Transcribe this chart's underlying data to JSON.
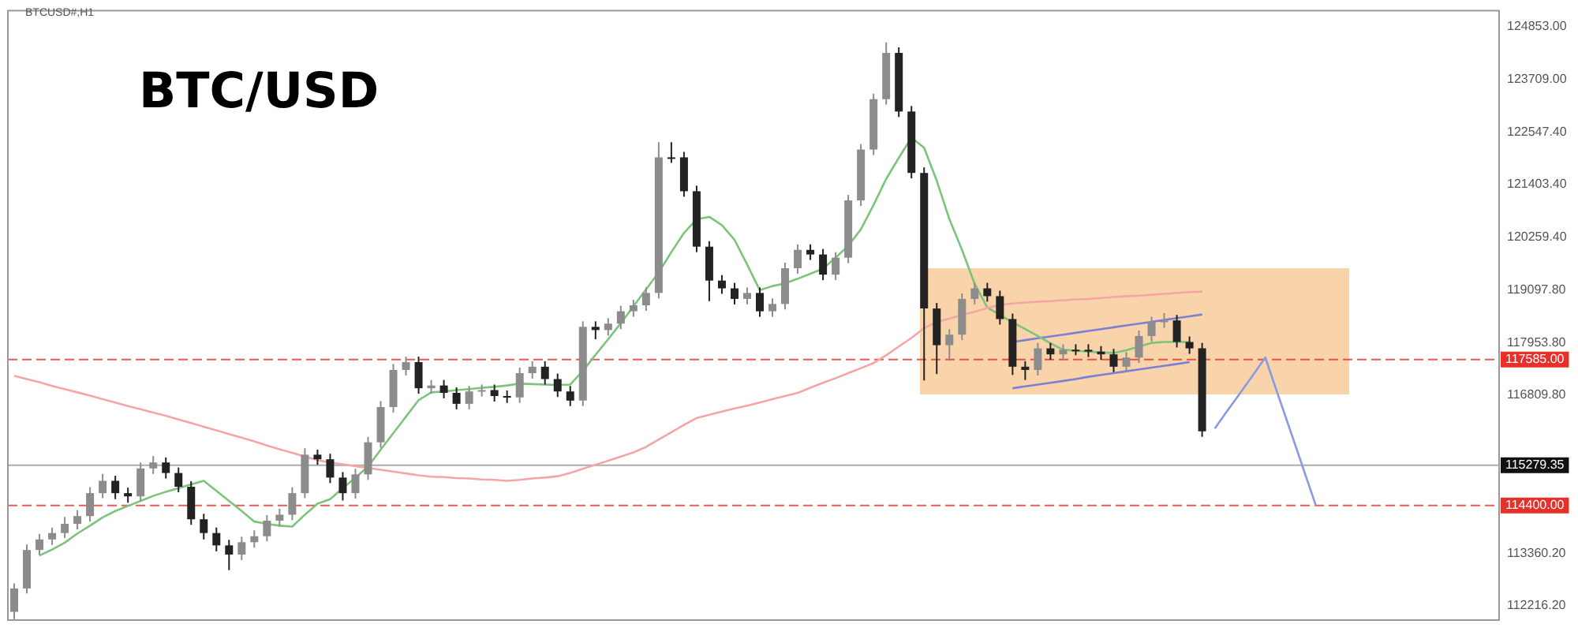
{
  "chart_data": {
    "type": "candlestick",
    "title": "BTC/USD",
    "subtitle": "BTCUSD#,H1",
    "colors": [
      "#8c8c8c",
      "#8c8c8c",
      "#8c8c8c",
      "#8c8c8c",
      "#8c8c8c",
      "#8c8c8c",
      "#8c8c8c",
      "#8c8c8c",
      "#222222",
      "#222222",
      "#8c8c8c",
      "#8c8c8c",
      "#222222",
      "#222222",
      "#222222",
      "#222222",
      "#222222",
      "#222222",
      "#8c8c8c",
      "#8c8c8c",
      "#8c8c8c",
      "#8c8c8c",
      "#8c8c8c",
      "#8c8c8c",
      "#222222",
      "#222222",
      "#222222",
      "#8c8c8c",
      "#8c8c8c",
      "#8c8c8c",
      "#8c8c8c",
      "#8c8c8c",
      "#222222",
      "#8c8c8c",
      "#222222",
      "#222222",
      "#8c8c8c",
      "#8c8c8c",
      "#222222",
      "#222222",
      "#8c8c8c",
      "#8c8c8c",
      "#222222",
      "#222222",
      "#222222",
      "#8c8c8c",
      "#222222",
      "#8c8c8c",
      "#8c8c8c",
      "#8c8c8c",
      "#8c8c8c",
      "#8c8c8c",
      "#222222",
      "#222222",
      "#222222",
      "#222222",
      "#222222",
      "#222222",
      "#8c8c8c",
      "#222222",
      "#8c8c8c",
      "#8c8c8c",
      "#8c8c8c",
      "#222222",
      "#222222",
      "#8c8c8c",
      "#8c8c8c",
      "#8c8c8c",
      "#8c8c8c",
      "#8c8c8c",
      "#222222",
      "#222222",
      "#222222",
      "#222222",
      "#8c8c8c",
      "#8c8c8c",
      "#8c8c8c",
      "#222222",
      "#222222",
      "#222222",
      "#222222",
      "#8c8c8c",
      "#222222",
      "#8c8c8c",
      "#222222",
      "#222222",
      "#222222",
      "#222222",
      "#8c8c8c",
      "#8c8c8c",
      "#8c8c8c",
      "#8c8c8c",
      "#222222",
      "#222222",
      "#222222",
      null,
      null,
      null,
      null,
      null,
      null,
      null,
      null,
      null,
      null,
      null,
      null,
      null,
      null,
      null,
      null,
      null,
      null,
      null,
      null,
      null,
      null,
      null
    ],
    "categories": [
      null,
      null,
      null,
      null,
      null,
      null,
      null,
      null,
      null,
      null,
      null,
      null,
      null,
      null,
      null,
      null,
      null,
      null,
      null,
      null,
      null,
      null,
      null,
      null,
      null,
      null,
      null,
      null,
      null,
      null,
      null,
      null,
      null,
      null,
      null,
      null,
      null,
      null,
      null,
      null,
      null,
      null,
      null,
      null,
      null,
      null,
      null,
      null,
      null,
      null,
      null,
      null,
      null,
      null,
      null,
      null,
      null,
      null,
      null,
      null,
      null,
      null,
      null,
      null,
      null,
      null,
      null,
      null,
      null,
      null,
      null,
      null,
      null,
      null,
      null,
      null,
      null,
      null,
      null,
      null,
      null,
      null,
      null,
      null,
      null,
      null,
      null,
      null,
      null,
      null,
      null,
      null,
      null,
      null,
      null,
      null,
      null,
      null,
      null,
      null,
      null,
      null,
      null,
      null,
      null,
      null,
      null,
      null,
      null,
      null,
      null,
      null,
      null,
      null,
      null,
      null,
      null,
      null
    ],
    "ohlc": [
      [
        112080,
        112700,
        111920,
        112590
      ],
      [
        112590,
        113550,
        112480,
        113430
      ],
      [
        113430,
        113780,
        113320,
        113660
      ],
      [
        113660,
        113920,
        113540,
        113800
      ],
      [
        113800,
        114150,
        113690,
        114000
      ],
      [
        114000,
        114300,
        113880,
        114170
      ],
      [
        114170,
        114800,
        114050,
        114670
      ],
      [
        114670,
        115090,
        114560,
        114940
      ],
      [
        114940,
        115050,
        114540,
        114670
      ],
      [
        114670,
        114790,
        114460,
        114600
      ],
      [
        114600,
        115340,
        114500,
        115210
      ],
      [
        115210,
        115480,
        115090,
        115340
      ],
      [
        115340,
        115450,
        114990,
        115110
      ],
      [
        115110,
        115230,
        114690,
        114810
      ],
      [
        114810,
        114930,
        113980,
        114100
      ],
      [
        114100,
        114220,
        113660,
        113800
      ],
      [
        113800,
        113920,
        113400,
        113530
      ],
      [
        113530,
        113650,
        112990,
        113330
      ],
      [
        113330,
        113720,
        113210,
        113600
      ],
      [
        113600,
        113860,
        113480,
        113730
      ],
      [
        113730,
        114190,
        113620,
        114070
      ],
      [
        114070,
        114330,
        113950,
        114200
      ],
      [
        114200,
        114800,
        114080,
        114670
      ],
      [
        114670,
        115650,
        114560,
        115510
      ],
      [
        115510,
        115620,
        115290,
        115410
      ],
      [
        115410,
        115530,
        114890,
        115010
      ],
      [
        115010,
        115130,
        114510,
        114670
      ],
      [
        114670,
        115200,
        114550,
        115080
      ],
      [
        115080,
        115900,
        114960,
        115780
      ],
      [
        115780,
        116680,
        115660,
        116550
      ],
      [
        116550,
        117490,
        116430,
        117360
      ],
      [
        117360,
        117650,
        117240,
        117530
      ],
      [
        117530,
        117650,
        116840,
        116960
      ],
      [
        116960,
        117140,
        116840,
        117020
      ],
      [
        117020,
        117140,
        116740,
        116860
      ],
      [
        116860,
        116980,
        116500,
        116620
      ],
      [
        116620,
        117010,
        116500,
        116890
      ],
      [
        116890,
        117040,
        116780,
        116920
      ],
      [
        116920,
        117040,
        116670,
        116790
      ],
      [
        116790,
        116910,
        116640,
        116760
      ],
      [
        116760,
        117410,
        116640,
        117290
      ],
      [
        117290,
        117550,
        117170,
        117430
      ],
      [
        117430,
        117550,
        117040,
        117160
      ],
      [
        117160,
        117280,
        116770,
        116890
      ],
      [
        116890,
        117010,
        116570,
        116690
      ],
      [
        116690,
        118420,
        116570,
        118300
      ],
      [
        118300,
        118420,
        118030,
        118230
      ],
      [
        118230,
        118490,
        118110,
        118370
      ],
      [
        118370,
        118760,
        118250,
        118640
      ],
      [
        118640,
        118890,
        118520,
        118770
      ],
      [
        118770,
        119160,
        118650,
        119040
      ],
      [
        119040,
        122330,
        118920,
        122000
      ],
      [
        122000,
        122330,
        121880,
        122000
      ],
      [
        122000,
        122120,
        121140,
        121260
      ],
      [
        121260,
        121380,
        119930,
        120050
      ],
      [
        120050,
        120170,
        118860,
        119310
      ],
      [
        119310,
        119430,
        119020,
        119140
      ],
      [
        119140,
        119260,
        118790,
        118910
      ],
      [
        118910,
        119160,
        118790,
        119040
      ],
      [
        119040,
        119160,
        118520,
        118640
      ],
      [
        118640,
        118920,
        118520,
        118800
      ],
      [
        118800,
        119700,
        118680,
        119580
      ],
      [
        119580,
        120100,
        119460,
        119980
      ],
      [
        119980,
        120100,
        119760,
        119880
      ],
      [
        119880,
        120000,
        119320,
        119440
      ],
      [
        119440,
        119930,
        119320,
        119810
      ],
      [
        119810,
        121180,
        119690,
        121060
      ],
      [
        121060,
        122290,
        120940,
        122170
      ],
      [
        122170,
        123390,
        122050,
        123270
      ],
      [
        123270,
        124510,
        123150,
        124280
      ],
      [
        124280,
        124400,
        122880,
        123000
      ],
      [
        123000,
        123120,
        121540,
        121660
      ],
      [
        121660,
        121780,
        117130,
        118700
      ],
      [
        118700,
        118820,
        117270,
        117900
      ],
      [
        117900,
        118250,
        117560,
        118130
      ],
      [
        118130,
        119030,
        118010,
        118910
      ],
      [
        118910,
        119260,
        118790,
        119140
      ],
      [
        119140,
        119260,
        118850,
        118970
      ],
      [
        118970,
        119090,
        118350,
        118470
      ],
      [
        118470,
        118590,
        117250,
        117430
      ],
      [
        117430,
        117550,
        117140,
        117360
      ],
      [
        117360,
        117950,
        117240,
        117830
      ],
      [
        117830,
        117950,
        117580,
        117700
      ],
      [
        117700,
        117920,
        117580,
        117800
      ],
      [
        117800,
        117920,
        117680,
        117800
      ],
      [
        117800,
        117920,
        117640,
        117760
      ],
      [
        117760,
        117880,
        117580,
        117700
      ],
      [
        117700,
        117820,
        117310,
        117430
      ],
      [
        117430,
        117750,
        117310,
        117630
      ],
      [
        117630,
        118220,
        117510,
        118100
      ],
      [
        118100,
        118520,
        117980,
        118400
      ],
      [
        118400,
        118600,
        118280,
        118440
      ],
      [
        118440,
        118560,
        117850,
        117970
      ],
      [
        117970,
        118090,
        117710,
        117830
      ],
      [
        117830,
        117950,
        115900,
        116020
      ],
      null,
      null,
      null,
      null,
      null,
      null,
      null,
      null,
      null,
      null,
      null,
      null,
      null,
      null,
      null,
      null,
      null,
      null,
      null,
      null,
      null,
      null,
      null
    ],
    "series": [
      {
        "type": "line",
        "color": "#f4a6a6",
        "values": [
          117230,
          117160,
          117090,
          117010,
          116940,
          116870,
          116800,
          116720,
          116650,
          116570,
          116500,
          116430,
          116360,
          116280,
          116200,
          116120,
          116040,
          115960,
          115880,
          115800,
          115710,
          115630,
          115550,
          115470,
          115390,
          115340,
          115300,
          115260,
          115220,
          115180,
          115140,
          115100,
          115060,
          115030,
          115020,
          115000,
          114990,
          114970,
          114960,
          114940,
          114960,
          114990,
          115010,
          115040,
          115110,
          115200,
          115290,
          115380,
          115470,
          115560,
          115680,
          115840,
          116000,
          116160,
          116310,
          116380,
          116450,
          116520,
          116580,
          116650,
          116720,
          116790,
          116860,
          116970,
          117080,
          117180,
          117290,
          117400,
          117510,
          117680,
          117870,
          118060,
          118270,
          118410,
          118480,
          118560,
          118630,
          118710,
          118780,
          118810,
          118830,
          118850,
          118860,
          118880,
          118900,
          118910,
          118930,
          118950,
          118970,
          118980,
          119000,
          119020,
          119040,
          119060,
          119070,
          null,
          null,
          null,
          null,
          null,
          null,
          null,
          null,
          null,
          null,
          null,
          null,
          null,
          null,
          null,
          null,
          null,
          null,
          null,
          null,
          null,
          null,
          null
        ]
      },
      {
        "type": "line",
        "color": "#7cc47c",
        "values": [
          null,
          null,
          113310,
          113440,
          113590,
          113790,
          113960,
          114140,
          114280,
          114390,
          114500,
          114610,
          114700,
          114780,
          114860,
          114940,
          114720,
          114500,
          114280,
          114050,
          114000,
          113960,
          113940,
          114200,
          114440,
          114540,
          114780,
          115010,
          115250,
          115620,
          115980,
          116340,
          116700,
          116870,
          116890,
          116920,
          116940,
          116970,
          116990,
          117020,
          117060,
          117050,
          117040,
          117030,
          117040,
          117340,
          117690,
          118030,
          118380,
          118750,
          119120,
          119490,
          119930,
          120350,
          120650,
          120700,
          120520,
          120200,
          119660,
          119100,
          119190,
          119250,
          119350,
          119460,
          119570,
          119810,
          120070,
          120430,
          120960,
          121530,
          121990,
          122430,
          122210,
          121490,
          120650,
          119980,
          119240,
          118720,
          118560,
          118400,
          118250,
          118100,
          117940,
          117800,
          117780,
          117760,
          117740,
          117730,
          117790,
          117870,
          117950,
          117970,
          117970,
          117970,
          null,
          null,
          null,
          null,
          null,
          null,
          null,
          null,
          null,
          null,
          null,
          null,
          null,
          null,
          null,
          null,
          null,
          null,
          null,
          null,
          null,
          null,
          null,
          null
        ]
      },
      {
        "type": "line",
        "color": "#7b7fd6",
        "values": [
          null,
          null,
          null,
          null,
          null,
          null,
          null,
          null,
          null,
          null,
          null,
          null,
          null,
          null,
          null,
          null,
          null,
          null,
          null,
          null,
          null,
          null,
          null,
          null,
          null,
          null,
          null,
          null,
          null,
          null,
          null,
          null,
          null,
          null,
          null,
          null,
          null,
          null,
          null,
          null,
          null,
          null,
          null,
          null,
          null,
          null,
          null,
          null,
          null,
          null,
          null,
          null,
          null,
          null,
          null,
          null,
          null,
          null,
          null,
          null,
          null,
          null,
          null,
          null,
          null,
          null,
          null,
          null,
          null,
          null,
          null,
          null,
          null,
          null,
          null,
          null,
          null,
          null,
          null,
          117970,
          118010,
          118050,
          118090,
          118130,
          118170,
          118210,
          118250,
          118290,
          118330,
          118370,
          118410,
          118450,
          118490,
          118530,
          118570,
          null,
          null,
          null,
          null,
          null,
          null,
          null,
          null,
          null,
          null,
          null,
          null,
          null,
          null,
          null,
          null,
          null,
          null,
          null,
          null,
          null,
          null,
          null
        ]
      },
      {
        "type": "line",
        "color": "#7b7fd6",
        "values": [
          null,
          null,
          null,
          null,
          null,
          null,
          null,
          null,
          null,
          null,
          null,
          null,
          null,
          null,
          null,
          null,
          null,
          null,
          null,
          null,
          null,
          null,
          null,
          null,
          null,
          null,
          null,
          null,
          null,
          null,
          null,
          null,
          null,
          null,
          null,
          null,
          null,
          null,
          null,
          null,
          null,
          null,
          null,
          null,
          null,
          null,
          null,
          null,
          null,
          null,
          null,
          null,
          null,
          null,
          null,
          null,
          null,
          null,
          null,
          null,
          null,
          null,
          null,
          null,
          null,
          null,
          null,
          null,
          null,
          null,
          null,
          null,
          null,
          null,
          null,
          null,
          null,
          null,
          null,
          116960,
          117000,
          117040,
          117080,
          117120,
          117160,
          117210,
          117250,
          117290,
          117330,
          117370,
          117410,
          117450,
          117490,
          117530,
          null,
          null,
          null,
          null,
          null,
          null,
          null,
          null,
          null,
          null,
          null,
          null,
          null,
          null,
          null,
          null,
          null,
          null,
          null,
          null,
          null,
          null,
          null,
          null
        ]
      },
      {
        "type": "line",
        "color": "#8a9be0",
        "values": [
          null,
          null,
          null,
          null,
          null,
          null,
          null,
          null,
          null,
          null,
          null,
          null,
          null,
          null,
          null,
          null,
          null,
          null,
          null,
          null,
          null,
          null,
          null,
          null,
          null,
          null,
          null,
          null,
          null,
          null,
          null,
          null,
          null,
          null,
          null,
          null,
          null,
          null,
          null,
          null,
          null,
          null,
          null,
          null,
          null,
          null,
          null,
          null,
          null,
          null,
          null,
          null,
          null,
          null,
          null,
          null,
          null,
          null,
          null,
          null,
          null,
          null,
          null,
          null,
          null,
          null,
          null,
          null,
          null,
          null,
          null,
          null,
          null,
          null,
          null,
          null,
          null,
          null,
          null,
          null,
          null,
          null,
          null,
          null,
          null,
          null,
          null,
          null,
          null,
          null,
          null,
          null,
          null,
          null,
          null,
          116080,
          116470,
          116850,
          117240,
          117630,
          116820,
          116020,
          115210,
          114400,
          null,
          null,
          null,
          null,
          null,
          null,
          null,
          null,
          null,
          null,
          null,
          null,
          null,
          null
        ]
      }
    ],
    "ref_lines": [
      {
        "axis": "y",
        "value": 117585,
        "label": "117585.00",
        "color": "#e8302a",
        "line_style": "dashed"
      },
      {
        "axis": "y",
        "value": 114400,
        "label": "114400.00",
        "color": "#e8302a",
        "line_style": "dashed"
      },
      {
        "axis": "y",
        "value": 115279.35,
        "label": "115279.35",
        "color": "#111111",
        "line_style": "solid"
      }
    ],
    "ylim": [
      111900,
      125200
    ],
    "yticks": [
      {
        "value": 124853,
        "label": "124853.00"
      },
      {
        "value": 123709,
        "label": "123709.00"
      },
      {
        "value": 122547.4,
        "label": "122547.40"
      },
      {
        "value": 121403.4,
        "label": "121403.40"
      },
      {
        "value": 120259.4,
        "label": "120259.40"
      },
      {
        "value": 119097.8,
        "label": "119097.80"
      },
      {
        "value": 117953.8,
        "label": "117953.80"
      },
      {
        "value": 116809.8,
        "label": "116809.80"
      },
      {
        "value": 113360.2,
        "label": "113360.20"
      },
      {
        "value": 112216.2,
        "label": "112216.20"
      }
    ],
    "tick_labels": "y",
    "grid": false,
    "legend": false
  }
}
